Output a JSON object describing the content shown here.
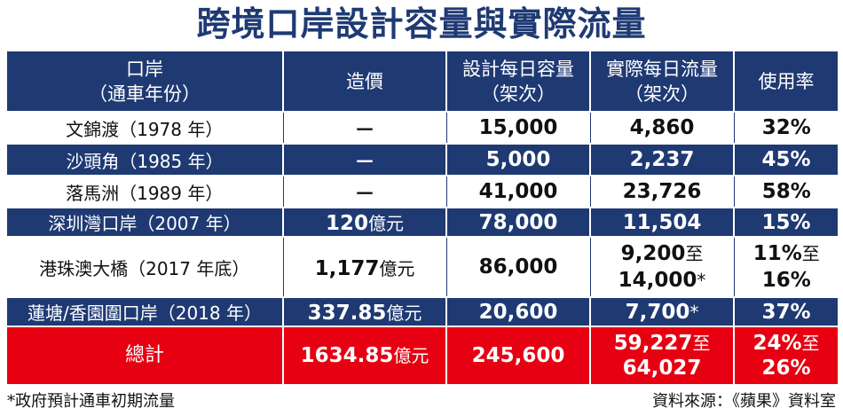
{
  "title": "跨境口岸設計容量與實際流量",
  "headers": {
    "col1_line1": "口岸",
    "col1_line2": "（通車年份）",
    "col2": "造價",
    "col3_line1": "設計每日容量",
    "col3_line2": "（架次）",
    "col4_line1": "實際每日流量",
    "col4_line2": "（架次）",
    "col5": "使用率"
  },
  "rows": [
    {
      "name": "文錦渡（1978 年）",
      "cost_num": "",
      "cost_unit": "",
      "cost_dash": "－",
      "capacity": "15,000",
      "flow1": "4,860",
      "flow1_suffix": "",
      "flow2": "",
      "flow2_suffix": "",
      "rate1": "32%",
      "rate1_suffix": "",
      "rate2": ""
    },
    {
      "name": "沙頭角（1985 年）",
      "cost_num": "",
      "cost_unit": "",
      "cost_dash": "－",
      "capacity": "5,000",
      "flow1": "2,237",
      "flow1_suffix": "",
      "flow2": "",
      "flow2_suffix": "",
      "rate1": "45%",
      "rate1_suffix": "",
      "rate2": ""
    },
    {
      "name": "落馬洲（1989 年）",
      "cost_num": "",
      "cost_unit": "",
      "cost_dash": "－",
      "capacity": "41,000",
      "flow1": "23,726",
      "flow1_suffix": "",
      "flow2": "",
      "flow2_suffix": "",
      "rate1": "58%",
      "rate1_suffix": "",
      "rate2": ""
    },
    {
      "name": "深圳灣口岸（2007 年）",
      "cost_num": "120",
      "cost_unit": "億元",
      "cost_dash": "",
      "capacity": "78,000",
      "flow1": "11,504",
      "flow1_suffix": "",
      "flow2": "",
      "flow2_suffix": "",
      "rate1": "15%",
      "rate1_suffix": "",
      "rate2": ""
    },
    {
      "name": "港珠澳大橋（2017 年底）",
      "cost_num": "1,177",
      "cost_unit": "億元",
      "cost_dash": "",
      "capacity": "86,000",
      "flow1": "9,200",
      "flow1_suffix": "至",
      "flow2": "14,000",
      "flow2_suffix": "*",
      "rate1": "11%",
      "rate1_suffix": "至",
      "rate2": "16%"
    },
    {
      "name": "蓮塘/香園圍口岸（2018 年）",
      "cost_num": "337.85",
      "cost_unit": "億元",
      "cost_dash": "",
      "capacity": "20,600",
      "flow1": "7,700",
      "flow1_suffix": "*",
      "flow2": "",
      "flow2_suffix": "",
      "rate1": "37%",
      "rate1_suffix": "",
      "rate2": ""
    }
  ],
  "total": {
    "label": "總計",
    "cost_num": "1634.85",
    "cost_unit": "億元",
    "capacity": "245,600",
    "flow1": "59,227",
    "flow1_suffix": "至",
    "flow2": "64,027",
    "rate1": "24%",
    "rate1_suffix": "至",
    "rate2": "26%"
  },
  "footnote": "*政府預計通車初期流量",
  "source": "資料來源：《蘋果》資料室",
  "colors": {
    "header_blue": "#1f3a73",
    "total_red": "#e60012",
    "text_dark": "#111111"
  }
}
